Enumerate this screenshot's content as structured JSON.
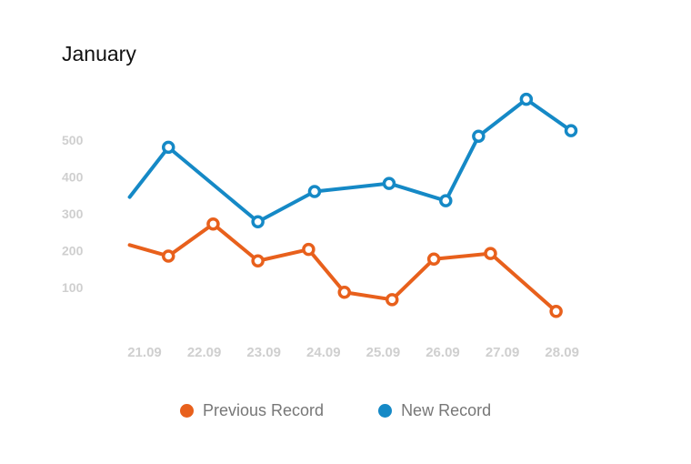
{
  "chart_data": {
    "type": "line",
    "title": "January",
    "categories": [
      "21.09",
      "22.09",
      "23.09",
      "24.09",
      "25.09",
      "26.09",
      "27.09",
      "28.09"
    ],
    "y_ticks": [
      100,
      200,
      300,
      400,
      500
    ],
    "ylim": [
      0,
      620
    ],
    "grid": false,
    "legend_position": "bottom",
    "series": [
      {
        "name": "Previous Record",
        "color": "#e8601c",
        "points": [
          {
            "x": 0.75,
            "y": 215,
            "marker": false
          },
          {
            "x": 1.4,
            "y": 185,
            "marker": true
          },
          {
            "x": 2.15,
            "y": 272,
            "marker": true
          },
          {
            "x": 2.9,
            "y": 172,
            "marker": true
          },
          {
            "x": 3.75,
            "y": 203,
            "marker": true
          },
          {
            "x": 4.35,
            "y": 87,
            "marker": true
          },
          {
            "x": 5.15,
            "y": 67,
            "marker": true
          },
          {
            "x": 5.85,
            "y": 177,
            "marker": true
          },
          {
            "x": 6.8,
            "y": 192,
            "marker": true
          },
          {
            "x": 7.9,
            "y": 35,
            "marker": true
          }
        ]
      },
      {
        "name": "New Record",
        "color": "#1589c6",
        "points": [
          {
            "x": 0.75,
            "y": 345,
            "marker": false
          },
          {
            "x": 1.4,
            "y": 480,
            "marker": true
          },
          {
            "x": 2.9,
            "y": 278,
            "marker": true
          },
          {
            "x": 3.85,
            "y": 360,
            "marker": true
          },
          {
            "x": 5.1,
            "y": 382,
            "marker": true
          },
          {
            "x": 6.05,
            "y": 335,
            "marker": true
          },
          {
            "x": 6.6,
            "y": 510,
            "marker": true
          },
          {
            "x": 7.4,
            "y": 610,
            "marker": true
          },
          {
            "x": 8.15,
            "y": 525,
            "marker": true
          }
        ]
      }
    ]
  },
  "legend": {
    "items": [
      {
        "label": "Previous Record",
        "color": "#e8601c"
      },
      {
        "label": "New Record",
        "color": "#1589c6"
      }
    ]
  }
}
